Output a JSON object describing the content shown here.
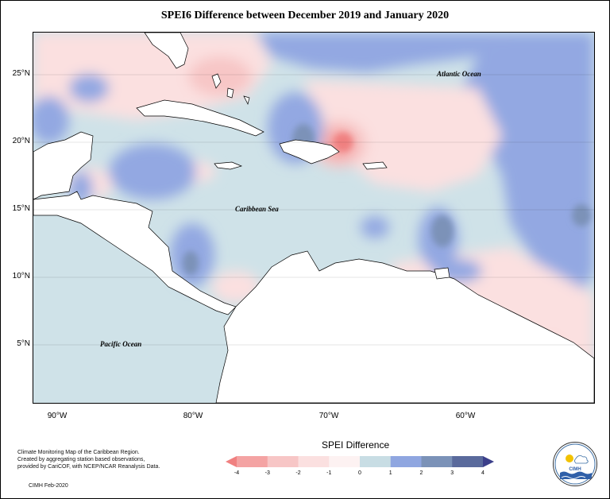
{
  "title": "SPEI6 Difference between December 2019 and January 2020",
  "map": {
    "lat_ticks": [
      "25°N",
      "20°N",
      "15°N",
      "10°N",
      "5°N"
    ],
    "lon_ticks": [
      "90°W",
      "80°W",
      "70°W",
      "60°W"
    ],
    "labels": {
      "atlantic": "Atlantic Ocean",
      "caribbean": "Caribbean Sea",
      "pacific": "Pacific Ocean"
    }
  },
  "legend": {
    "title": "SPEI Difference",
    "ticks": [
      "-4",
      "-3",
      "-2",
      "-1",
      "0",
      "1",
      "2",
      "3",
      "4"
    ],
    "colors": [
      "#f08080",
      "#f4a3a3",
      "#f7c6c6",
      "#fbe0e0",
      "#fdf2f2",
      "#c8dde4",
      "#8fa6e0",
      "#7b92b8",
      "#5a6a9c",
      "#3b3f8a"
    ]
  },
  "caption": {
    "lines": [
      "Climate Monitoring Map of the Caribbean Region.",
      "Created by aggregating station based observations,",
      "provided by CariCOF, with NCEP/NCAR Reanalysis Data."
    ],
    "credit": "CIMH Feb-2020"
  },
  "logo": {
    "text": "CIMH"
  }
}
